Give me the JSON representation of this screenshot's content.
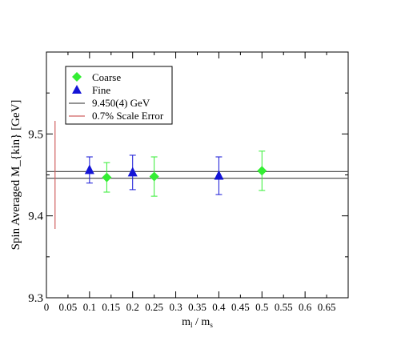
{
  "chart_data": {
    "type": "scatter",
    "title": "",
    "xlabel_main": "m",
    "xlabel_sub1": "l",
    "xlabel_sep": " / m",
    "xlabel_sub2": "s",
    "ylabel": "Spin Averaged M_{kin} [GeV]",
    "xlim": [
      0,
      0.7
    ],
    "ylim": [
      9.3,
      9.6
    ],
    "x_ticks": [
      "0",
      "0.05",
      "0.1",
      "0.15",
      "0.2",
      "0.25",
      "0.3",
      "0.35",
      "0.4",
      "0.45",
      "0.5",
      "0.55",
      "0.6",
      "0.65"
    ],
    "x_tick_values": [
      0,
      0.05,
      0.1,
      0.15,
      0.2,
      0.25,
      0.3,
      0.35,
      0.4,
      0.45,
      0.5,
      0.55,
      0.6,
      0.65
    ],
    "y_ticks": [
      "9.3",
      "9.4",
      "9.5"
    ],
    "y_tick_values": [
      9.3,
      9.4,
      9.5
    ],
    "grid": false,
    "legend_position": "top-left",
    "series": [
      {
        "name": "Coarse",
        "marker": "diamond",
        "color": "#33ee33",
        "points": [
          {
            "x": 0.14,
            "y": 9.447,
            "err": 0.018
          },
          {
            "x": 0.25,
            "y": 9.448,
            "err": 0.024
          },
          {
            "x": 0.5,
            "y": 9.455,
            "err": 0.024
          }
        ]
      },
      {
        "name": "Fine",
        "marker": "triangle",
        "color": "#1414d6",
        "points": [
          {
            "x": 0.1,
            "y": 9.456,
            "err": 0.016
          },
          {
            "x": 0.2,
            "y": 9.453,
            "err": 0.021
          },
          {
            "x": 0.4,
            "y": 9.449,
            "err": 0.023
          }
        ]
      }
    ],
    "bands": [
      {
        "name": "9.450(4) GeV",
        "color": "#555555",
        "lower": 9.446,
        "upper": 9.454
      }
    ],
    "scale_error": {
      "name": "0.7% Scale Error",
      "color": "#d06060",
      "x": 0.02,
      "y_low": 9.384,
      "y_high": 9.516
    }
  }
}
